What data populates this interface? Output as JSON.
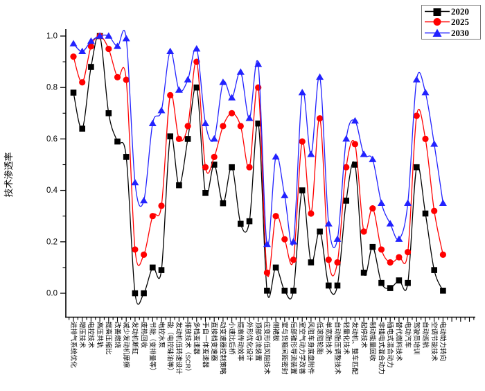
{
  "figure": {
    "background": "#ffffff",
    "y_axis_label": "技术渗透率",
    "y_tick_labels": [
      "0.0",
      "0.2",
      "0.4",
      "0.6",
      "0.8",
      "1.0"
    ]
  },
  "chart_data": {
    "type": "line",
    "title": "",
    "xlabel": "",
    "ylabel": "技术渗透率",
    "ylim": [
      -0.09,
      1.12
    ],
    "yticks": [
      0,
      0.2,
      0.4,
      0.6,
      0.8,
      1.0
    ],
    "grid": false,
    "legend_position": "top-right",
    "categories": [
      "进排气系统优化",
      "增压技术",
      "电控技术",
      "高压共轨",
      "提高压缩比",
      "改善燃烧",
      "减少发动机摩擦",
      "发动机断缸",
      "废热回收",
      "节能（变排量等）",
      "电控水泵",
      "能（电控硅油等）",
      "发动机低转速设计",
      "排放技术（SCR）",
      "多档变速器",
      "手自一体变速器",
      "直接档变速器",
      "动变速器控制策略",
      "小速比后桥",
      "提高传动效率",
      "外形优化设计",
      "顶部导流装置",
      "应变形低风阻技术",
      "侧裙板",
      "室与货箱间距密封",
      "后部锥形导流装置",
      "室空气动力学改善",
      "风阻车身底盘附件",
      "低滚阻轮胎",
      "单宽胎技术",
      "自动胎压调整技术",
      "轻量化技术",
      "发动机、整车匹配",
      "起停技术",
      "制动能量回收",
      "非插电式混合动力",
      "插电式混合动力",
      "替代燃料技术",
      "电动汽车",
      "驾驶员培训",
      "自动巡航",
      "空调节能技术",
      "电动助力转向"
    ],
    "series": [
      {
        "name": "2020",
        "color": "#000000",
        "marker": "square",
        "values": [
          0.78,
          0.64,
          0.88,
          1.0,
          0.7,
          0.59,
          0.53,
          0.0,
          0.0,
          0.1,
          0.09,
          0.61,
          0.42,
          0.6,
          0.8,
          0.39,
          0.5,
          0.35,
          0.49,
          0.27,
          0.28,
          0.66,
          0.01,
          0.1,
          0.01,
          0.01,
          0.4,
          0.12,
          0.24,
          0.03,
          0.03,
          0.36,
          0.5,
          0.08,
          0.18,
          0.04,
          0.02,
          0.05,
          0.04,
          0.49,
          0.31,
          0.09,
          0.01
        ]
      },
      {
        "name": "2025",
        "color": "#ff0000",
        "marker": "circle",
        "values": [
          0.92,
          0.82,
          0.96,
          1.0,
          0.95,
          0.84,
          0.83,
          0.17,
          0.15,
          0.3,
          0.34,
          0.77,
          0.6,
          0.65,
          0.9,
          0.49,
          0.53,
          0.65,
          0.7,
          0.65,
          0.49,
          0.8,
          0.08,
          0.3,
          0.21,
          0.13,
          0.59,
          0.31,
          0.68,
          0.13,
          0.12,
          0.49,
          0.58,
          0.24,
          0.33,
          0.17,
          0.12,
          0.14,
          0.16,
          0.69,
          0.6,
          0.32,
          0.15
        ]
      },
      {
        "name": "2030",
        "color": "#2222ff",
        "marker": "triangle",
        "values": [
          0.97,
          0.94,
          0.98,
          1.0,
          1.0,
          0.96,
          0.99,
          0.43,
          0.36,
          0.66,
          0.71,
          0.94,
          0.79,
          0.83,
          0.95,
          0.66,
          0.6,
          0.82,
          0.76,
          0.86,
          0.68,
          0.89,
          0.19,
          0.53,
          0.38,
          0.2,
          0.78,
          0.54,
          0.84,
          0.27,
          0.21,
          0.6,
          0.67,
          0.54,
          0.52,
          0.35,
          0.27,
          0.21,
          0.35,
          0.83,
          0.78,
          0.58,
          0.35
        ]
      }
    ]
  }
}
